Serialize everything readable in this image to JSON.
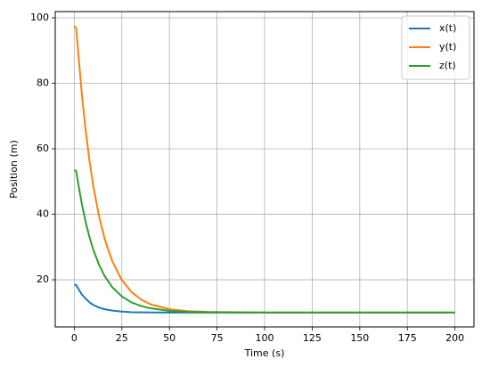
{
  "chart_data": {
    "type": "line",
    "xlabel": "Time (s)",
    "ylabel": "Position (m)",
    "x": [
      0,
      1,
      2,
      4,
      6,
      8,
      10,
      13,
      16,
      20,
      25,
      30,
      35,
      40,
      50,
      60,
      70,
      100,
      150,
      200
    ],
    "series": [
      {
        "name": "x(t)",
        "color": "#1f77b4",
        "values": [
          18.5,
          18.4,
          17.4,
          15.5,
          14.2,
          13.1,
          12.3,
          11.5,
          11.0,
          10.6,
          10.3,
          10.1,
          10.07,
          10.03,
          10,
          10,
          10,
          10,
          10,
          10
        ]
      },
      {
        "name": "y(t)",
        "color": "#ff7f0e",
        "values": [
          97.5,
          96.9,
          89.9,
          76.6,
          65.6,
          56.3,
          48.6,
          39.4,
          32.4,
          25.6,
          19.9,
          16.3,
          14.0,
          12.5,
          11.0,
          10.4,
          10.2,
          10,
          10,
          10
        ]
      },
      {
        "name": "z(t)",
        "color": "#2ca02c",
        "values": [
          53.5,
          53.2,
          49.7,
          43.1,
          37.6,
          33.0,
          29.2,
          24.6,
          21.1,
          17.7,
          14.9,
          13.1,
          12.0,
          11.3,
          10.5,
          10.2,
          10.1,
          10,
          10,
          10
        ]
      }
    ],
    "xlim": [
      -10,
      210
    ],
    "xticks": [
      0,
      25,
      50,
      75,
      100,
      125,
      150,
      175,
      200
    ],
    "ylim": [
      5.6,
      101.9
    ],
    "yticks": [
      20,
      40,
      60,
      80,
      100
    ],
    "grid": true,
    "legend": "upper-right"
  }
}
